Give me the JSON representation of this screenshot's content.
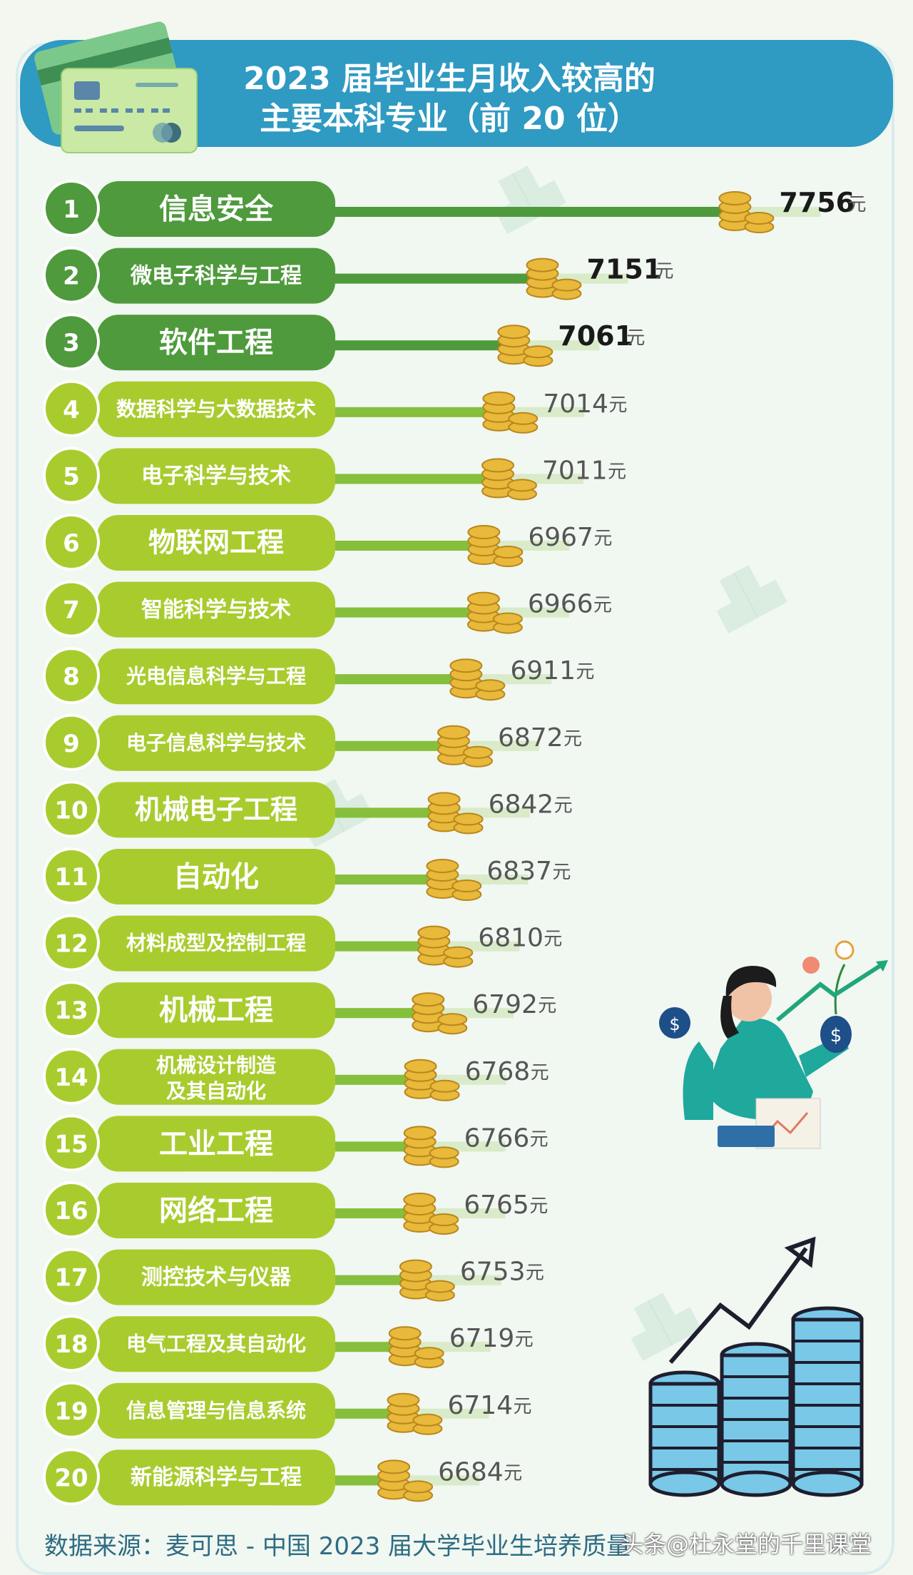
{
  "title_line1": "2023 届毕业生月收入较高的",
  "title_line2": "主要本科专业（前 20 位）",
  "unit": "元",
  "source": "数据来源：麦可思 - 中国 2023 届大学毕业生培养质量",
  "watermark_text": "头条@杜永堂的千里课堂",
  "colors": {
    "header": "#2f9ac2",
    "rank_dark": "#4e9a3c",
    "rank_light": "#a8cc2e",
    "track": "#d9ebc9",
    "coin": "#e8b93a"
  },
  "chart_data": {
    "type": "bar",
    "orientation": "horizontal",
    "title": "2023 届毕业生月收入较高的主要本科专业（前 20 位）",
    "ranks": [
      "1",
      "2",
      "3",
      "4",
      "5",
      "6",
      "7",
      "8",
      "9",
      "10",
      "11",
      "12",
      "13",
      "14",
      "15",
      "16",
      "17",
      "18",
      "19",
      "20"
    ],
    "categories": [
      "信息安全",
      "微电子科学与工程",
      "软件工程",
      "数据科学与大数据技术",
      "电子科学与技术",
      "物联网工程",
      "智能科学与技术",
      "光电信息科学与工程",
      "电子信息科学与技术",
      "机械电子工程",
      "自动化",
      "材料成型及控制工程",
      "机械工程",
      "机械设计制造及其自动化",
      "工业工程",
      "网络工程",
      "测控技术与仪器",
      "电气工程及其自动化",
      "信息管理与信息系统",
      "新能源科学与工程"
    ],
    "values": [
      7756,
      7151,
      7061,
      7014,
      7011,
      6967,
      6966,
      6911,
      6872,
      6842,
      6837,
      6810,
      6792,
      6768,
      6766,
      6765,
      6753,
      6719,
      6714,
      6684
    ],
    "value_labels": [
      "7756",
      "7151",
      "7061",
      "7014",
      "7011",
      "6967",
      "6966",
      "6911",
      "6872",
      "6842",
      "6837",
      "6810",
      "6792",
      "6768",
      "6766",
      "6765",
      "6753",
      "6719",
      "6714",
      "6684"
    ],
    "xlabel": "",
    "ylabel": ""
  }
}
